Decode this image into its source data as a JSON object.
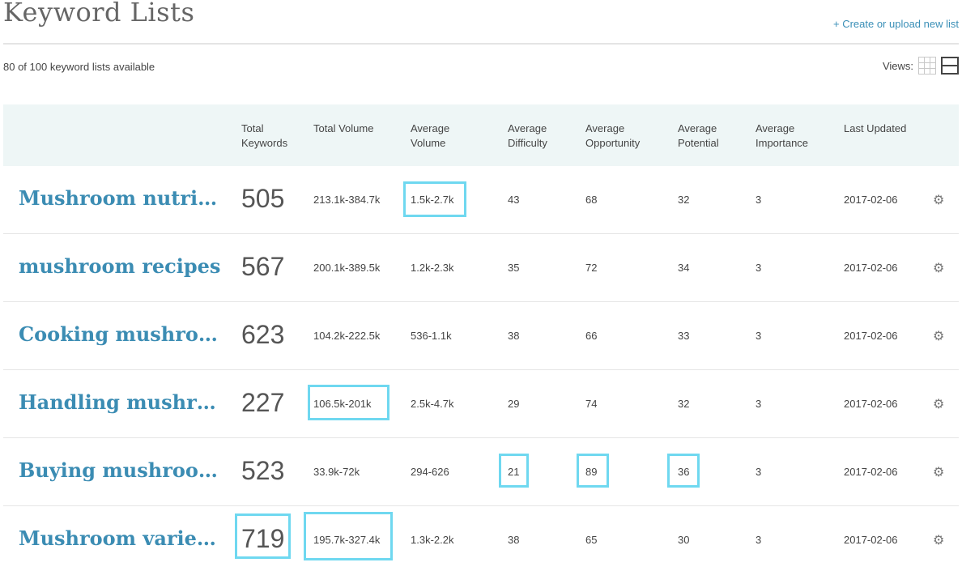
{
  "header": {
    "title": "Keyword Lists",
    "create_link": "+ Create or upload new list",
    "available": "80 of 100 keyword lists available",
    "views_label": "Views:"
  },
  "columns": {
    "total_keywords": "Total\nKeywords",
    "total_volume": "Total Volume",
    "average_volume": "Average\nVolume",
    "average_difficulty": "Average\nDifficulty",
    "average_opportunity": "Average\nOpportunity",
    "average_potential": "Average\nPotential",
    "average_importance": "Average\nImportance",
    "last_updated": "Last Updated"
  },
  "rows": [
    {
      "name": "Mushroom nutrition",
      "keywords": "505",
      "volume": "213.1k-384.7k",
      "avg_volume": "1.5k-2.7k",
      "difficulty": "43",
      "opportunity": "68",
      "potential": "32",
      "importance": "3",
      "updated": "2017-02-06"
    },
    {
      "name": "mushroom recipes",
      "keywords": "567",
      "volume": "200.1k-389.5k",
      "avg_volume": "1.2k-2.3k",
      "difficulty": "35",
      "opportunity": "72",
      "potential": "34",
      "importance": "3",
      "updated": "2017-02-06"
    },
    {
      "name": "Cooking mushrooms",
      "keywords": "623",
      "volume": "104.2k-222.5k",
      "avg_volume": "536-1.1k",
      "difficulty": "38",
      "opportunity": "66",
      "potential": "33",
      "importance": "3",
      "updated": "2017-02-06"
    },
    {
      "name": "Handling mushrooms",
      "keywords": "227",
      "volume": "106.5k-201k",
      "avg_volume": "2.5k-4.7k",
      "difficulty": "29",
      "opportunity": "74",
      "potential": "32",
      "importance": "3",
      "updated": "2017-02-06"
    },
    {
      "name": "Buying mushrooms",
      "keywords": "523",
      "volume": "33.9k-72k",
      "avg_volume": "294-626",
      "difficulty": "21",
      "opportunity": "89",
      "potential": "36",
      "importance": "3",
      "updated": "2017-02-06"
    },
    {
      "name": "Mushroom varieties",
      "keywords": "719",
      "volume": "195.7k-327.4k",
      "avg_volume": "1.3k-2.2k",
      "difficulty": "38",
      "opportunity": "65",
      "potential": "30",
      "importance": "3",
      "updated": "2017-02-06"
    }
  ],
  "icons": {
    "settings": "gear-icon",
    "grid_view": "grid-view-icon",
    "list_view": "list-view-icon"
  },
  "colors": {
    "accent": "#3b8cb3",
    "header_bg": "#eef6f6",
    "highlight": "#6fd8f0"
  }
}
